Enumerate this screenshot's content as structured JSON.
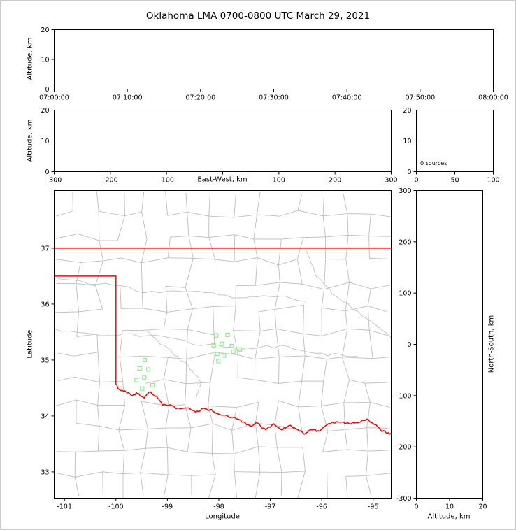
{
  "title": "Oklahoma LMA 0700-0800 UTC March 29, 2021",
  "colors": {
    "axis": "#000000",
    "county": "#c4c4c4",
    "river": "#c8c8c8",
    "state_border": "#ff0000",
    "station": "#90ee90",
    "background": "#ffffff",
    "frame": "#c9c9c9"
  },
  "chart_data": [
    {
      "id": "time_height",
      "type": "scatter",
      "xlabel": "",
      "ylabel": "Altitude, km",
      "xlim": [
        0,
        3600
      ],
      "ylim": [
        0,
        20
      ],
      "xticks": {
        "values": [
          0,
          600,
          1200,
          1800,
          2400,
          3000,
          3600
        ],
        "labels": [
          "07:00:00",
          "07:10:00",
          "07:20:00",
          "07:30:00",
          "07:40:00",
          "07:50:00",
          "08:00:00"
        ]
      },
      "yticks": {
        "values": [
          0,
          10,
          20
        ],
        "labels": [
          "0",
          "10",
          "20"
        ]
      },
      "points": []
    },
    {
      "id": "ew_height",
      "type": "scatter",
      "xlabel": "East-West, km",
      "ylabel": "Altitude, km",
      "xlim": [
        -300,
        300
      ],
      "ylim": [
        0,
        20
      ],
      "xticks": {
        "values": [
          -300,
          -200,
          -100,
          0,
          100,
          200,
          300
        ],
        "labels": [
          "-300",
          "-200",
          "-100",
          "",
          "100",
          "200",
          "300"
        ]
      },
      "yticks": {
        "values": [
          0,
          10,
          20
        ],
        "labels": [
          "0",
          "10",
          "20"
        ]
      },
      "points": []
    },
    {
      "id": "histogram",
      "type": "scatter",
      "annotation": "0 sources",
      "xlabel": "",
      "ylabel": "",
      "xlim": [
        0,
        100
      ],
      "ylim": [
        0,
        20
      ],
      "xticks": {
        "values": [
          0,
          50,
          100
        ],
        "labels": [
          "0",
          "50",
          "100"
        ]
      },
      "yticks": {
        "values": [
          0,
          10,
          20
        ],
        "labels": [
          "0",
          "10",
          "20"
        ]
      },
      "points": []
    },
    {
      "id": "map",
      "type": "scatter",
      "xlabel": "Longitude",
      "ylabel": "Latitude",
      "xlim": [
        -101.2,
        -94.65
      ],
      "ylim": [
        32.53,
        38.03
      ],
      "xticks": {
        "values": [
          -101,
          -100,
          -99,
          -98,
          -97,
          -96,
          -95
        ],
        "labels": [
          "-101",
          "-100",
          "-99",
          "-98",
          "-97",
          "-96",
          "-95"
        ]
      },
      "yticks": {
        "values": [
          33,
          34,
          35,
          36,
          37
        ],
        "labels": [
          "33",
          "34",
          "35",
          "36",
          "37"
        ]
      },
      "state_border_segments": [
        [
          [
            -101.25,
            37.0
          ],
          [
            -94.6,
            37.0
          ]
        ],
        [
          [
            -94.62,
            37.0
          ],
          [
            -94.62,
            36.5
          ]
        ],
        [
          [
            -101.25,
            36.5
          ],
          [
            -100.0,
            36.5
          ],
          [
            -100.0,
            34.56
          ]
        ]
      ],
      "red_river": [
        [
          -100.0,
          34.56
        ],
        [
          -99.93,
          34.45
        ],
        [
          -99.8,
          34.44
        ],
        [
          -99.7,
          34.37
        ],
        [
          -99.58,
          34.41
        ],
        [
          -99.45,
          34.32
        ],
        [
          -99.36,
          34.44
        ],
        [
          -99.21,
          34.34
        ],
        [
          -99.1,
          34.2
        ],
        [
          -98.95,
          34.21
        ],
        [
          -98.8,
          34.13
        ],
        [
          -98.61,
          34.16
        ],
        [
          -98.45,
          34.06
        ],
        [
          -98.3,
          34.13
        ],
        [
          -98.14,
          34.1
        ],
        [
          -98.0,
          34.03
        ],
        [
          -97.84,
          34.0
        ],
        [
          -97.69,
          33.96
        ],
        [
          -97.55,
          33.9
        ],
        [
          -97.4,
          33.82
        ],
        [
          -97.25,
          33.88
        ],
        [
          -97.09,
          33.74
        ],
        [
          -96.94,
          33.85
        ],
        [
          -96.79,
          33.75
        ],
        [
          -96.64,
          33.83
        ],
        [
          -96.5,
          33.77
        ],
        [
          -96.34,
          33.69
        ],
        [
          -96.19,
          33.76
        ],
        [
          -96.04,
          33.72
        ],
        [
          -95.89,
          33.86
        ],
        [
          -95.74,
          33.89
        ],
        [
          -95.58,
          33.88
        ],
        [
          -95.43,
          33.87
        ],
        [
          -95.28,
          33.89
        ],
        [
          -95.13,
          33.94
        ],
        [
          -94.98,
          33.86
        ],
        [
          -94.84,
          33.74
        ],
        [
          -94.73,
          33.7
        ],
        [
          -94.6,
          33.68
        ]
      ],
      "stations": [
        [
          -99.44,
          35.0
        ],
        [
          -99.54,
          34.85
        ],
        [
          -99.37,
          34.83
        ],
        [
          -99.45,
          34.69
        ],
        [
          -99.6,
          34.64
        ],
        [
          -99.29,
          34.55
        ],
        [
          -99.49,
          34.49
        ],
        [
          -98.05,
          35.44
        ],
        [
          -97.83,
          35.45
        ],
        [
          -98.1,
          35.26
        ],
        [
          -97.94,
          35.29
        ],
        [
          -97.75,
          35.25
        ],
        [
          -97.59,
          35.19
        ],
        [
          -98.03,
          35.11
        ],
        [
          -97.9,
          35.08
        ],
        [
          -98.01,
          34.98
        ],
        [
          -97.72,
          35.15
        ]
      ],
      "rivers": [
        [
          [
            -101.2,
            36.45
          ],
          [
            -100.2,
            36.35
          ],
          [
            -99.3,
            36.2
          ],
          [
            -98.4,
            36.25
          ],
          [
            -97.6,
            36.1
          ],
          [
            -96.9,
            36.15
          ],
          [
            -96.3,
            36.05
          ]
        ],
        [
          [
            -101.2,
            35.55
          ],
          [
            -100.3,
            35.45
          ],
          [
            -99.4,
            35.45
          ],
          [
            -98.5,
            35.3
          ],
          [
            -97.6,
            35.2
          ],
          [
            -96.8,
            35.25
          ],
          [
            -96.0,
            35.1
          ],
          [
            -95.3,
            35.07
          ]
        ],
        [
          [
            -96.3,
            36.95
          ],
          [
            -96.1,
            36.5
          ],
          [
            -95.8,
            36.2
          ],
          [
            -95.2,
            35.8
          ],
          [
            -94.65,
            35.4
          ]
        ],
        [
          [
            -99.4,
            35.5
          ],
          [
            -99.0,
            35.2
          ],
          [
            -98.6,
            34.9
          ],
          [
            -98.35,
            34.6
          ],
          [
            -98.45,
            34.3
          ]
        ]
      ]
    },
    {
      "id": "ns_height",
      "type": "scatter",
      "xlabel": "Altitude, km",
      "ylabel": "North-South, km",
      "xlim": [
        0,
        20
      ],
      "ylim": [
        -300,
        300
      ],
      "xticks": {
        "values": [
          0,
          10,
          20
        ],
        "labels": [
          "0",
          "10",
          "20"
        ]
      },
      "yticks": {
        "values": [
          -300,
          -200,
          -100,
          0,
          100,
          200,
          300
        ],
        "labels": [
          "-300",
          "-200",
          "-100",
          "0",
          "100",
          "200",
          "300"
        ]
      },
      "points": []
    }
  ]
}
